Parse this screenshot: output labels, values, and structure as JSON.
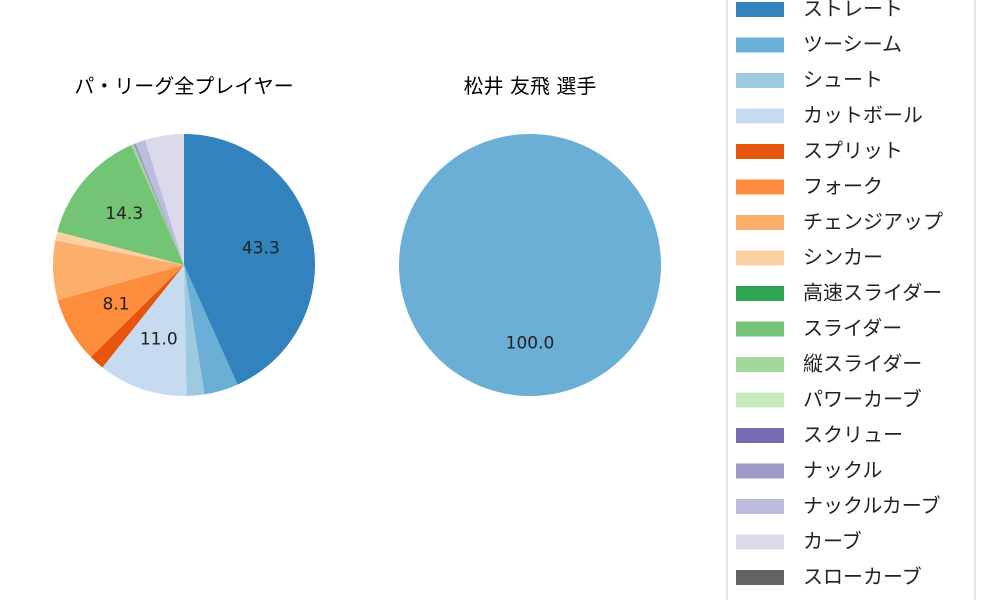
{
  "chart_data": [
    {
      "type": "pie",
      "title": "パ・リーグ全プレイヤー",
      "categories": [
        "ストレート",
        "ツーシーム",
        "シュート",
        "カットボール",
        "スプリット",
        "フォーク",
        "チェンジアップ",
        "シンカー",
        "高速スライダー",
        "スライダー",
        "縦スライダー",
        "パワーカーブ",
        "スクリュー",
        "ナックル",
        "ナックルカーブ",
        "カーブ",
        "スローカーブ"
      ],
      "values": [
        43.3,
        4.2,
        2.2,
        11.0,
        1.9,
        8.1,
        7.3,
        1.1,
        0.0,
        14.3,
        0.3,
        0.0,
        0.0,
        0.3,
        1.2,
        4.8,
        0.0
      ],
      "labels": [
        "43.3",
        "",
        "",
        "11.0",
        "",
        "8.1",
        "",
        "",
        "",
        "14.3",
        "",
        "",
        "",
        "",
        "",
        "",
        ""
      ]
    },
    {
      "type": "pie",
      "title": "松井 友飛  選手",
      "categories": [
        "ツーシーム"
      ],
      "values": [
        100.0
      ],
      "labels": [
        "100.0"
      ]
    }
  ],
  "legend": {
    "placement": "right",
    "items": [
      {
        "label": "ストレート",
        "color": "#3182bd"
      },
      {
        "label": "ツーシーム",
        "color": "#6baed6"
      },
      {
        "label": "シュート",
        "color": "#9ecae1"
      },
      {
        "label": "カットボール",
        "color": "#c6dbef"
      },
      {
        "label": "スプリット",
        "color": "#e6550d"
      },
      {
        "label": "フォーク",
        "color": "#fd8d3c"
      },
      {
        "label": "チェンジアップ",
        "color": "#fdae6b"
      },
      {
        "label": "シンカー",
        "color": "#fdd0a2"
      },
      {
        "label": "高速スライダー",
        "color": "#31a354"
      },
      {
        "label": "スライダー",
        "color": "#74c476"
      },
      {
        "label": "縦スライダー",
        "color": "#a1d99b"
      },
      {
        "label": "パワーカーブ",
        "color": "#c7e9c0"
      },
      {
        "label": "スクリュー",
        "color": "#756bb1"
      },
      {
        "label": "ナックル",
        "color": "#9e9ac8"
      },
      {
        "label": "ナックルカーブ",
        "color": "#bcbddc"
      },
      {
        "label": "カーブ",
        "color": "#dadaeb"
      },
      {
        "label": "スローカーブ",
        "color": "#636363"
      }
    ]
  }
}
